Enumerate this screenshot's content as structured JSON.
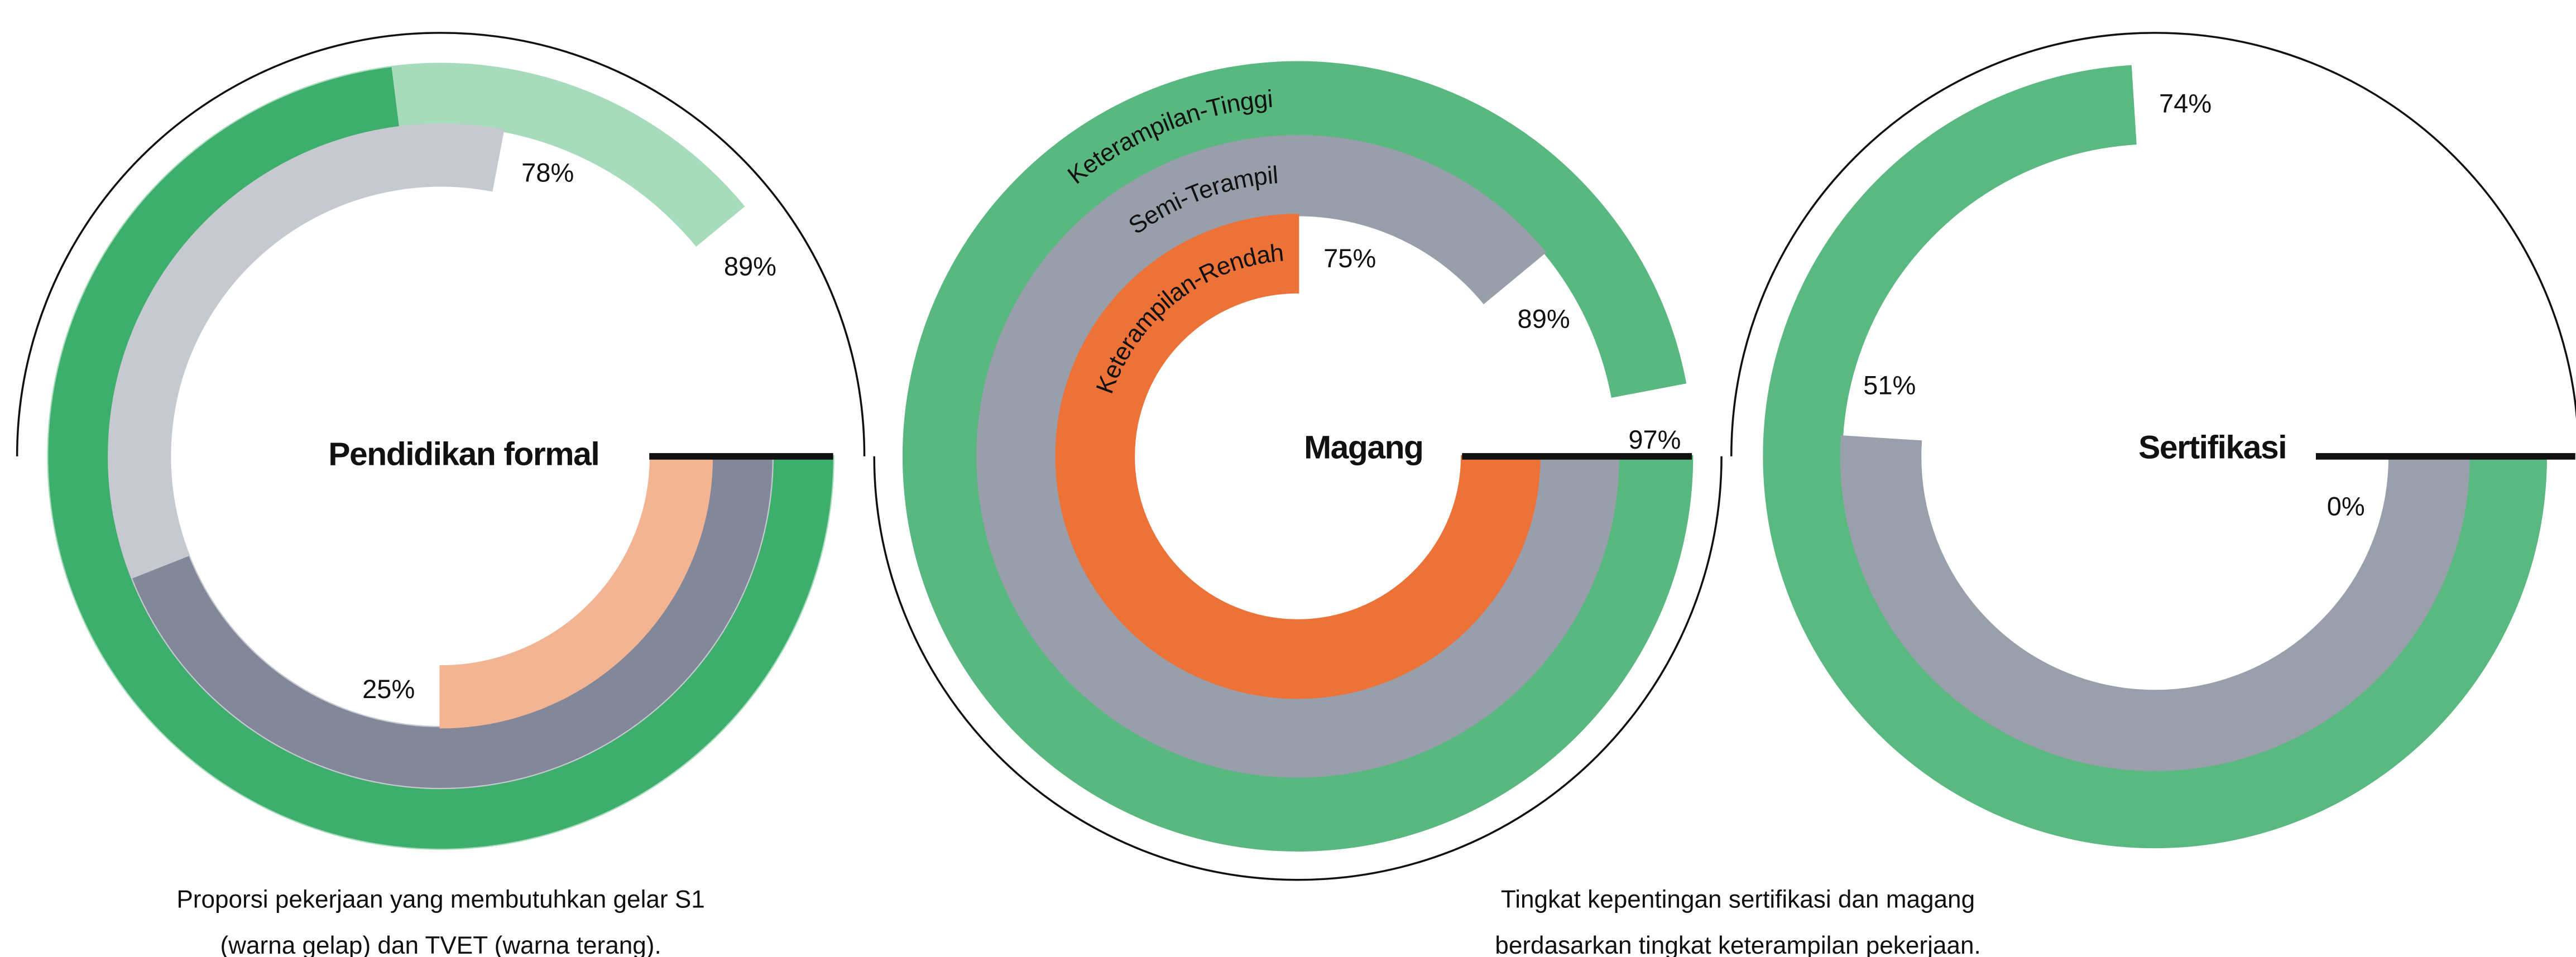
{
  "chart_data": [
    {
      "type": "radial_bar",
      "title": "Pendidikan formal",
      "values": [
        89,
        78,
        25
      ],
      "value_labels": [
        "89%",
        "78%",
        "25%"
      ],
      "dark_values": [
        73,
        44,
        0
      ],
      "colors": [
        "#a6dcbb",
        "#c6c9d0",
        "#f3b493"
      ],
      "dark_colors": [
        "#3eae6c",
        "#828899",
        "#e8693a"
      ]
    },
    {
      "type": "radial_bar",
      "title": "Magang",
      "series_names": [
        "Keterampilan-Tinggi",
        "Semi-Terampil",
        "Keterampilan-Rendah"
      ],
      "values": [
        97,
        89,
        75
      ],
      "value_labels": [
        "97%",
        "89%",
        "75%"
      ],
      "colors": [
        "#58b87f",
        "#999eab",
        "#ec7237"
      ]
    },
    {
      "type": "radial_bar",
      "title": "Sertifikasi",
      "values": [
        74,
        51,
        0
      ],
      "value_labels": [
        "74%",
        "51%",
        "0%"
      ],
      "colors": [
        "#5ab980",
        "#9a9fac",
        "#ec7237"
      ]
    }
  ],
  "captions": [
    [
      "Proporsi pekerjaan yang membutuhkan gelar S1",
      "(warna gelap) dan TVET (warna terang)."
    ],
    [
      "Tingkat kepentingan sertifikasi dan magang",
      "berdasarkan tingkat keterampilan pekerjaan."
    ]
  ]
}
